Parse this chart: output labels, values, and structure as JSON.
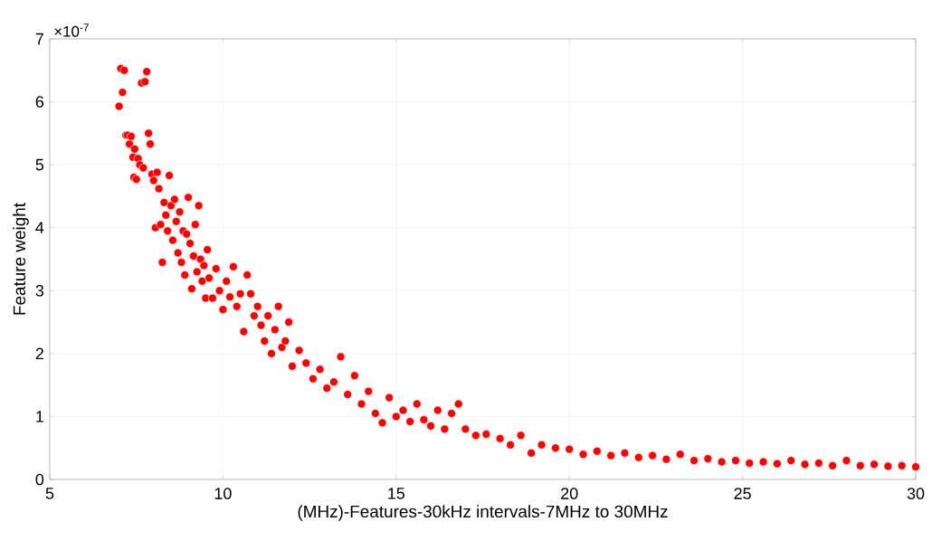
{
  "chart_data": {
    "type": "scatter",
    "xlabel": "(MHz)-Features-30kHz intervals-7MHz to 30MHz",
    "ylabel": "Feature weight",
    "annotations": [
      "×10$^{-7}$"
    ],
    "xlim": [
      5,
      30
    ],
    "xticks": [
      5,
      10,
      15,
      20,
      25,
      30
    ],
    "ylim": [
      0,
      7
    ],
    "yticks": [
      0,
      1,
      2,
      3,
      4,
      5,
      6,
      7
    ],
    "grid": true,
    "marker": "circle",
    "series": [
      {
        "color": "#ff0000",
        "x": [
          7.0,
          7.05,
          7.1,
          7.15,
          7.2,
          7.25,
          7.3,
          7.35,
          7.4,
          7.43,
          7.45,
          7.5,
          7.55,
          7.6,
          7.65,
          7.7,
          7.75,
          7.8,
          7.85,
          7.9,
          7.95,
          8.0,
          8.05,
          8.1,
          8.15,
          8.2,
          8.25,
          8.3,
          8.35,
          8.4,
          8.45,
          8.5,
          8.55,
          8.6,
          8.65,
          8.7,
          8.75,
          8.8,
          8.85,
          8.9,
          8.95,
          9.0,
          9.05,
          9.1,
          9.15,
          9.2,
          9.25,
          9.3,
          9.35,
          9.4,
          9.45,
          9.5,
          9.55,
          9.6,
          9.7,
          9.8,
          9.9,
          10.0,
          10.1,
          10.2,
          10.3,
          10.4,
          10.5,
          10.6,
          10.7,
          10.8,
          10.9,
          11.0,
          11.1,
          11.2,
          11.3,
          11.4,
          11.5,
          11.6,
          11.7,
          11.8,
          11.9,
          12.0,
          12.2,
          12.4,
          12.6,
          12.8,
          13.0,
          13.2,
          13.4,
          13.6,
          13.8,
          14.0,
          14.2,
          14.4,
          14.6,
          14.8,
          15.0,
          15.2,
          15.4,
          15.6,
          15.8,
          16.0,
          16.2,
          16.4,
          16.6,
          16.8,
          17.0,
          17.3,
          17.6,
          18.0,
          18.3,
          18.6,
          18.9,
          19.2,
          19.6,
          20.0,
          20.4,
          20.8,
          21.2,
          21.6,
          22.0,
          22.4,
          22.8,
          23.2,
          23.6,
          24.0,
          24.4,
          24.8,
          25.2,
          25.6,
          26.0,
          26.4,
          26.8,
          27.2,
          27.6,
          28.0,
          28.4,
          28.8,
          29.2,
          29.6,
          30.0
        ],
        "values": [
          5.93,
          6.53,
          6.15,
          6.5,
          5.47,
          5.47,
          5.33,
          5.45,
          5.12,
          4.8,
          5.25,
          4.77,
          5.1,
          5.0,
          6.3,
          4.95,
          6.32,
          6.48,
          5.5,
          5.33,
          4.85,
          4.75,
          4.0,
          4.88,
          4.62,
          4.05,
          3.45,
          4.4,
          4.2,
          3.95,
          4.83,
          4.35,
          3.8,
          4.45,
          4.1,
          3.6,
          4.25,
          3.45,
          3.95,
          3.25,
          3.9,
          4.48,
          3.75,
          3.03,
          3.55,
          4.05,
          3.3,
          4.35,
          3.5,
          3.15,
          3.4,
          2.88,
          3.65,
          3.2,
          2.88,
          3.35,
          3.0,
          2.7,
          3.15,
          2.9,
          3.38,
          2.75,
          2.95,
          2.35,
          3.25,
          2.95,
          2.6,
          2.75,
          2.45,
          2.2,
          2.6,
          2.0,
          2.38,
          2.75,
          2.1,
          2.2,
          2.5,
          1.8,
          2.05,
          1.85,
          1.6,
          1.75,
          1.45,
          1.55,
          1.95,
          1.35,
          1.65,
          1.2,
          1.4,
          1.05,
          0.9,
          1.3,
          1.0,
          1.1,
          0.92,
          1.2,
          0.95,
          0.85,
          1.1,
          0.8,
          1.05,
          1.2,
          0.8,
          0.7,
          0.72,
          0.65,
          0.55,
          0.7,
          0.42,
          0.55,
          0.5,
          0.48,
          0.4,
          0.45,
          0.38,
          0.42,
          0.35,
          0.38,
          0.32,
          0.4,
          0.3,
          0.33,
          0.28,
          0.3,
          0.26,
          0.28,
          0.25,
          0.3,
          0.24,
          0.26,
          0.22,
          0.3,
          0.22,
          0.24,
          0.21,
          0.22,
          0.2
        ]
      }
    ]
  }
}
